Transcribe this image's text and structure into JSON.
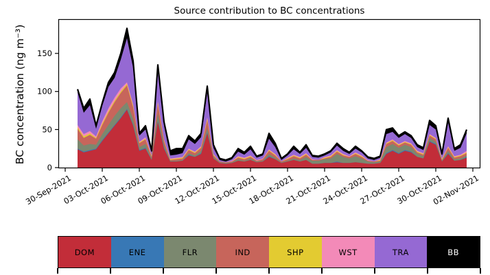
{
  "chart_data": {
    "type": "area",
    "stacked": true,
    "title": "Source contribution to BC concentrations",
    "ylabel": "BC concentration (ng m⁻³)",
    "xlabel": "",
    "ylim": [
      0,
      195
    ],
    "grid": false,
    "y_ticks": [
      0,
      50,
      100,
      150
    ],
    "x_tick_labels": [
      "30-Sep-2021",
      "03-Oct-2021",
      "06-Oct-2021",
      "09-Oct-2021",
      "12-Oct-2021",
      "15-Oct-2021",
      "18-Oct-2021",
      "21-Oct-2021",
      "24-Oct-2021",
      "27-Oct-2021",
      "30-Oct-2021",
      "02-Nov-2021"
    ],
    "x_tick_interval_days": 3,
    "data_start_offset_days": 1,
    "sample_interval_days": 0.5,
    "legend_position": "bottom",
    "total_line_color": "#000000",
    "series": [
      {
        "name": "DOM",
        "color": "#c22d39",
        "values": [
          24,
          20,
          22,
          24,
          35,
          45,
          55,
          65,
          76,
          55,
          22,
          25,
          10,
          60,
          25,
          8,
          8,
          9,
          16,
          14,
          18,
          45,
          12,
          6,
          5,
          6,
          9,
          8,
          10,
          7,
          8,
          14,
          11,
          6,
          8,
          10,
          8,
          10,
          5,
          5,
          6,
          6,
          7,
          6,
          6,
          7,
          6,
          5,
          5,
          6,
          18,
          22,
          18,
          22,
          20,
          14,
          12,
          34,
          30,
          8,
          18,
          9,
          10,
          13
        ]
      },
      {
        "name": "ENE",
        "color": "#3878b5",
        "values": [
          1,
          1,
          1,
          1,
          1,
          1,
          1,
          1,
          1,
          1,
          1,
          1,
          0,
          1,
          1,
          0,
          0,
          0,
          1,
          0,
          1,
          1,
          0,
          0,
          0,
          0,
          0,
          0,
          0,
          0,
          0,
          1,
          0,
          0,
          0,
          0,
          0,
          0,
          0,
          0,
          0,
          0,
          1,
          0,
          0,
          0,
          0,
          0,
          0,
          0,
          1,
          1,
          1,
          1,
          1,
          0,
          0,
          1,
          1,
          0,
          1,
          0,
          0,
          1
        ]
      },
      {
        "name": "FLR",
        "color": "#7b886f",
        "values": [
          12,
          8,
          8,
          5,
          8,
          10,
          12,
          12,
          9,
          8,
          4,
          5,
          2,
          10,
          4,
          1,
          1,
          1,
          2,
          2,
          3,
          6,
          2,
          1,
          1,
          1,
          2,
          1,
          2,
          1,
          1,
          3,
          2,
          1,
          1,
          2,
          2,
          4,
          4,
          4,
          5,
          6,
          10,
          8,
          6,
          8,
          6,
          3,
          2,
          2,
          8,
          8,
          7,
          7,
          6,
          4,
          3,
          4,
          3,
          1,
          3,
          2,
          2,
          2
        ]
      },
      {
        "name": "IND",
        "color": "#c7655b",
        "values": [
          14,
          10,
          12,
          8,
          12,
          16,
          18,
          20,
          22,
          15,
          5,
          6,
          2,
          12,
          5,
          1,
          2,
          2,
          4,
          3,
          4,
          10,
          2,
          1,
          1,
          1,
          2,
          2,
          2,
          1,
          2,
          4,
          3,
          1,
          2,
          3,
          2,
          3,
          1,
          1,
          1,
          2,
          3,
          2,
          2,
          3,
          2,
          1,
          1,
          1,
          4,
          4,
          3,
          3,
          3,
          2,
          2,
          3,
          3,
          1,
          4,
          2,
          3,
          3
        ]
      },
      {
        "name": "SHP",
        "color": "#e3cb31",
        "values": [
          2,
          2,
          2,
          1,
          2,
          2,
          2,
          2,
          2,
          2,
          1,
          1,
          1,
          2,
          1,
          1,
          1,
          1,
          1,
          1,
          1,
          2,
          1,
          0,
          0,
          0,
          1,
          1,
          1,
          0,
          0,
          1,
          1,
          0,
          1,
          1,
          1,
          1,
          0,
          0,
          1,
          1,
          1,
          1,
          0,
          1,
          1,
          0,
          0,
          1,
          1,
          1,
          1,
          1,
          1,
          1,
          1,
          1,
          1,
          1,
          1,
          1,
          1,
          1
        ]
      },
      {
        "name": "WST",
        "color": "#f38ab8",
        "values": [
          3,
          3,
          3,
          2,
          3,
          4,
          4,
          4,
          2,
          2,
          1,
          2,
          1,
          2,
          1,
          1,
          1,
          1,
          1,
          1,
          1,
          2,
          1,
          0,
          0,
          1,
          1,
          1,
          1,
          1,
          1,
          1,
          1,
          0,
          1,
          1,
          1,
          1,
          1,
          0,
          1,
          1,
          1,
          1,
          1,
          1,
          1,
          1,
          0,
          1,
          1,
          1,
          1,
          1,
          1,
          1,
          1,
          1,
          1,
          1,
          1,
          1,
          1,
          2
        ]
      },
      {
        "name": "TRA",
        "color": "#9569d3",
        "values": [
          43,
          28,
          34,
          10,
          20,
          28,
          26,
          38,
          58,
          48,
          8,
          10,
          4,
          40,
          18,
          4,
          4,
          5,
          12,
          10,
          12,
          33,
          8,
          2,
          1,
          2,
          6,
          4,
          8,
          3,
          4,
          14,
          9,
          2,
          3,
          7,
          4,
          7,
          3,
          3,
          2,
          4,
          6,
          4,
          3,
          5,
          4,
          2,
          2,
          2,
          11,
          10,
          8,
          9,
          7,
          5,
          4,
          12,
          11,
          4,
          31,
          7,
          9,
          23
        ]
      },
      {
        "name": "BB",
        "color": "#000000",
        "values": [
          4,
          6,
          8,
          4,
          4,
          6,
          7,
          8,
          13,
          9,
          3,
          5,
          2,
          8,
          5,
          6,
          8,
          6,
          5,
          4,
          5,
          8,
          4,
          2,
          2,
          2,
          4,
          3,
          4,
          2,
          2,
          7,
          5,
          2,
          2,
          4,
          2,
          4,
          2,
          2,
          2,
          2,
          3,
          3,
          2,
          3,
          2,
          2,
          2,
          2,
          6,
          5,
          3,
          3,
          3,
          3,
          3,
          6,
          5,
          2,
          6,
          3,
          4,
          5
        ]
      }
    ]
  },
  "legend": {
    "entries": [
      {
        "label": "DOM",
        "color": "#c22d39",
        "text_color": "#000000"
      },
      {
        "label": "ENE",
        "color": "#3878b5",
        "text_color": "#000000"
      },
      {
        "label": "FLR",
        "color": "#7b886f",
        "text_color": "#000000"
      },
      {
        "label": "IND",
        "color": "#c7655b",
        "text_color": "#000000"
      },
      {
        "label": "SHP",
        "color": "#e3cb31",
        "text_color": "#000000"
      },
      {
        "label": "WST",
        "color": "#f38ab8",
        "text_color": "#000000"
      },
      {
        "label": "TRA",
        "color": "#9569d3",
        "text_color": "#000000"
      },
      {
        "label": "BB",
        "color": "#000000",
        "text_color": "#ffffff"
      }
    ]
  }
}
